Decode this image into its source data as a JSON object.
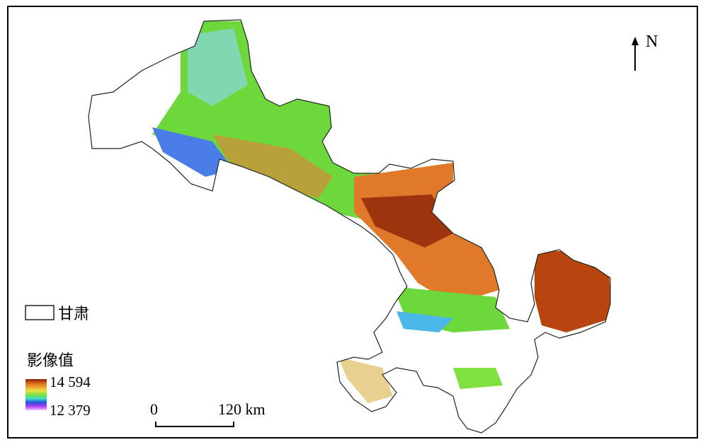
{
  "map": {
    "north_label": "N",
    "legend": {
      "boundary_label": "甘肃",
      "value_title": "影像值",
      "max_label": "14 594",
      "min_label": "12 379",
      "ramp_colors": [
        "#8b1a00",
        "#d2691e",
        "#f0a030",
        "#e8e040",
        "#7fe040",
        "#40e0c0",
        "#2050e0",
        "#b040f0",
        "#f0c0ff"
      ]
    },
    "scale_bar": {
      "start_label": "0",
      "end_label": "120 km"
    },
    "colors": {
      "high": "#b8440f",
      "mid_high": "#e07a2a",
      "mid": "#6cd83c",
      "low": "#4ab8e8",
      "lowest": "#a060f0",
      "nodata": "#ffffff",
      "boundary": "#222222"
    }
  }
}
